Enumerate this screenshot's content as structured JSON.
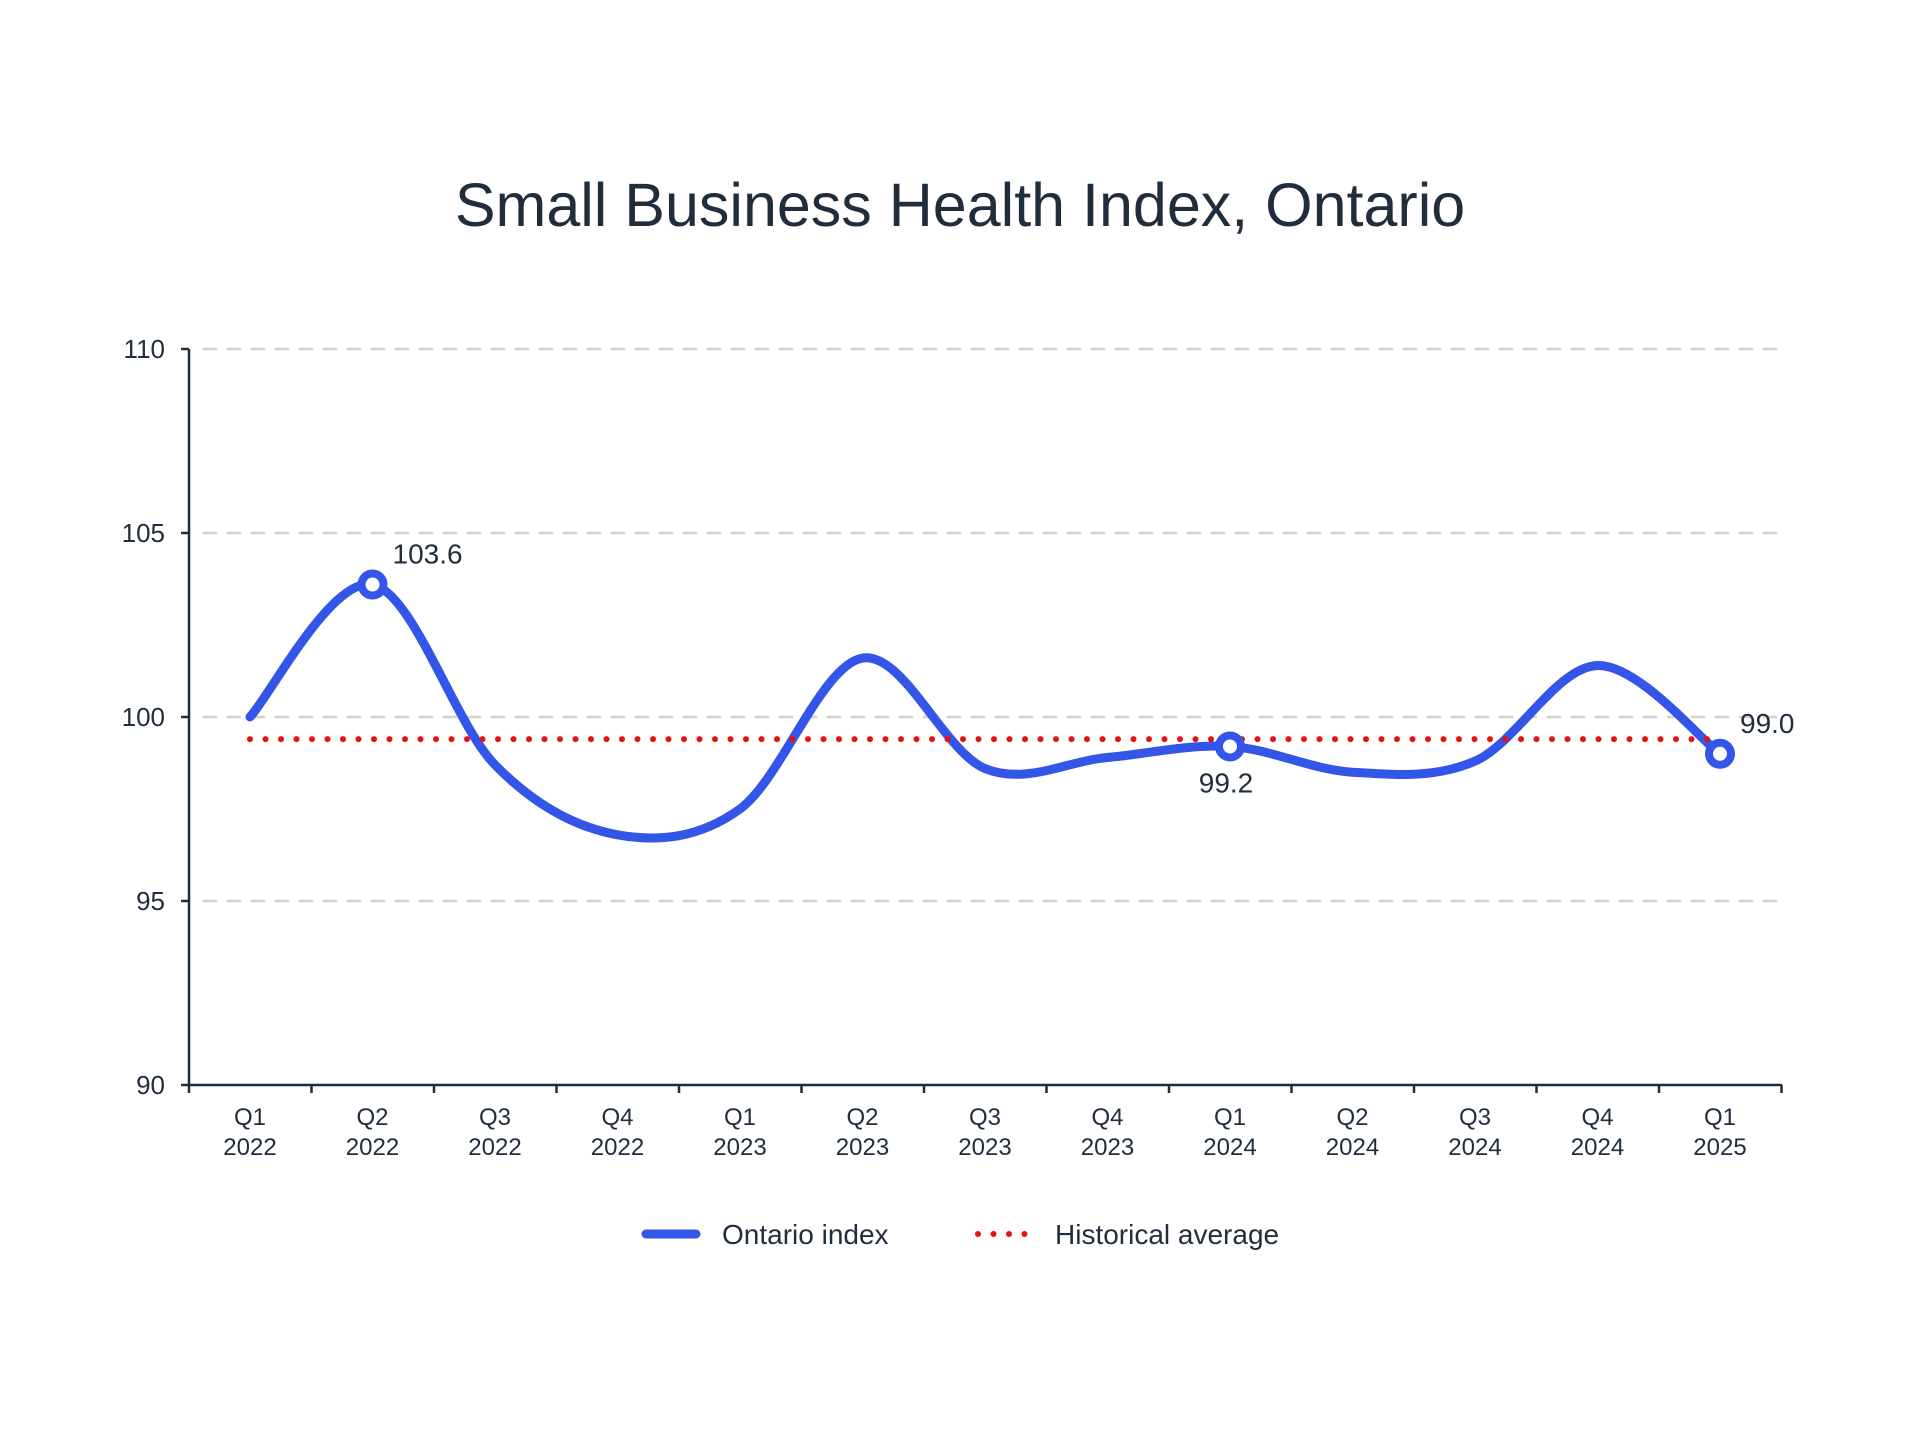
{
  "chart_data": {
    "type": "line",
    "title": "Small Business Health Index, Ontario",
    "xlabel": "",
    "ylabel": "",
    "ylim": [
      90,
      110
    ],
    "yticks": [
      "90",
      "95",
      "100",
      "105",
      "110"
    ],
    "grid": true,
    "legend_position": "bottom-center",
    "categories": [
      [
        "Q1",
        "2022"
      ],
      [
        "Q2",
        "2022"
      ],
      [
        "Q3",
        "2022"
      ],
      [
        "Q4",
        "2022"
      ],
      [
        "Q1",
        "2023"
      ],
      [
        "Q2",
        "2023"
      ],
      [
        "Q3",
        "2023"
      ],
      [
        "Q4",
        "2023"
      ],
      [
        "Q1",
        "2024"
      ],
      [
        "Q2",
        "2024"
      ],
      [
        "Q3",
        "2024"
      ],
      [
        "Q4",
        "2024"
      ],
      [
        "Q1",
        "2025"
      ]
    ],
    "series": [
      {
        "name": "Ontario index",
        "color": "#3355e8",
        "style": "solid-smooth",
        "values": [
          100.0,
          103.6,
          98.7,
          96.8,
          97.5,
          101.6,
          98.6,
          98.9,
          99.2,
          98.5,
          98.8,
          101.4,
          99.0
        ]
      },
      {
        "name": "Historical average",
        "color": "#e81010",
        "style": "dotted",
        "values": [
          99.4,
          99.4,
          99.4,
          99.4,
          99.4,
          99.4,
          99.4,
          99.4,
          99.4,
          99.4,
          99.4,
          99.4,
          99.4
        ]
      }
    ],
    "annotations": [
      {
        "index": 1,
        "text": "103.6",
        "position": "above-right"
      },
      {
        "index": 8,
        "text": "99.2",
        "position": "below"
      },
      {
        "index": 12,
        "text": "99.0",
        "position": "above-right"
      }
    ]
  }
}
